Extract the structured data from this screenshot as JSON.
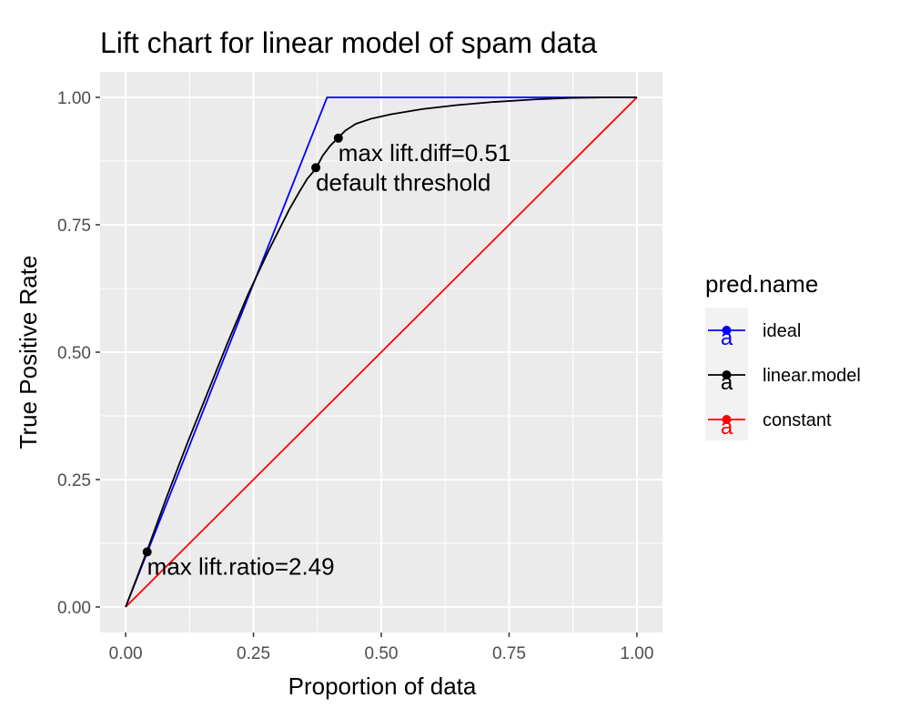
{
  "chart_data": {
    "type": "line",
    "title": "Lift chart for linear model of spam data",
    "xlabel": "Proportion of data",
    "ylabel": "True Positive Rate",
    "xlim": [
      -0.05,
      1.05
    ],
    "ylim": [
      -0.05,
      1.05
    ],
    "x_ticks": [
      "0.00",
      "0.25",
      "0.50",
      "0.75",
      "1.00"
    ],
    "y_ticks": [
      "0.00",
      "0.25",
      "0.50",
      "0.75",
      "1.00"
    ],
    "grid": true,
    "legend": {
      "title": "pred.name",
      "position": "right",
      "entries": [
        "ideal",
        "linear.model",
        "constant"
      ]
    },
    "series": [
      {
        "name": "ideal",
        "color": "#0000ff",
        "x": [
          0.0,
          0.394,
          1.0
        ],
        "y": [
          0.0,
          1.0,
          1.0
        ]
      },
      {
        "name": "linear.model",
        "color": "#000000",
        "x": [
          0.0,
          0.04,
          0.08,
          0.12,
          0.16,
          0.2,
          0.24,
          0.28,
          0.3,
          0.32,
          0.34,
          0.355,
          0.372,
          0.385,
          0.4,
          0.415,
          0.43,
          0.45,
          0.48,
          0.52,
          0.58,
          0.65,
          0.72,
          0.8,
          0.87,
          0.95,
          1.0
        ],
        "y": [
          0.0,
          0.105,
          0.215,
          0.32,
          0.42,
          0.52,
          0.615,
          0.7,
          0.74,
          0.78,
          0.815,
          0.84,
          0.86,
          0.885,
          0.905,
          0.92,
          0.935,
          0.948,
          0.958,
          0.967,
          0.977,
          0.985,
          0.991,
          0.996,
          0.999,
          1.0,
          1.0
        ]
      },
      {
        "name": "constant",
        "color": "#ff0000",
        "x": [
          0.0,
          1.0
        ],
        "y": [
          0.0,
          1.0
        ]
      }
    ],
    "points": [
      {
        "x": 0.042,
        "y": 0.108
      },
      {
        "x": 0.372,
        "y": 0.862
      },
      {
        "x": 0.416,
        "y": 0.92
      }
    ],
    "annotations": [
      {
        "text": "max lift.ratio=2.49",
        "x": 0.042,
        "y": 0.108
      },
      {
        "text": "default threshold",
        "x": 0.372,
        "y": 0.862
      },
      {
        "text": "max lift.diff=0.51",
        "x": 0.416,
        "y": 0.92
      }
    ]
  }
}
